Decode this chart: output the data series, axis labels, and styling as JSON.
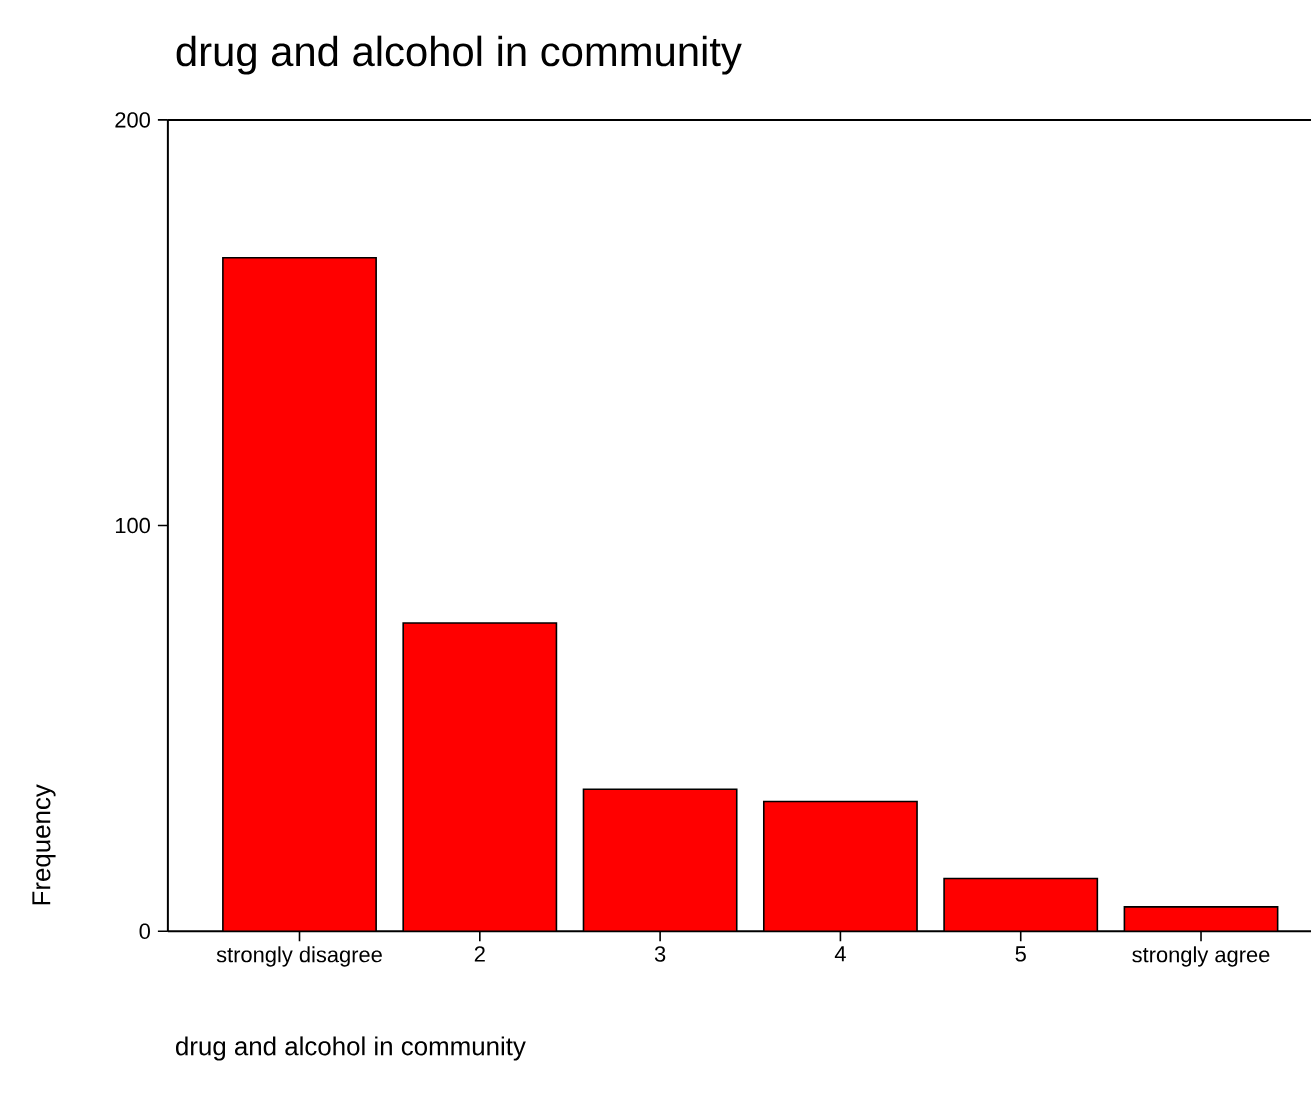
{
  "chart_data": {
    "type": "bar",
    "title": "drug and alcohol in community",
    "xlabel": "drug and alcohol in community",
    "ylabel": "Frequency",
    "categories": [
      "strongly disagree",
      "2",
      "3",
      "4",
      "5",
      "strongly agree"
    ],
    "values": [
      166,
      76,
      35,
      32,
      13,
      6
    ],
    "color": "#ff0000",
    "ylim": [
      0,
      200
    ],
    "yticks": [
      0,
      100,
      200
    ]
  }
}
